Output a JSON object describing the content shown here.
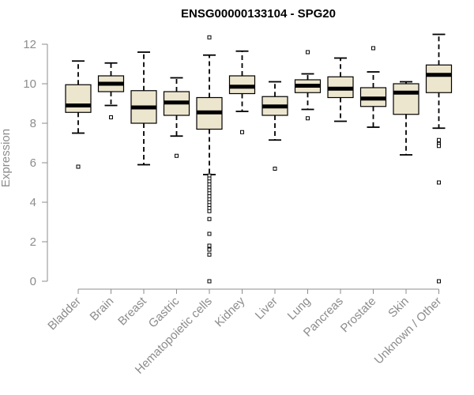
{
  "chart_data": {
    "type": "box",
    "title": "ENSG00000133104 - SPG20",
    "xlabel": "",
    "ylabel": "Expression",
    "ylim": [
      0,
      12.4
    ],
    "yticks": [
      0,
      2,
      4,
      6,
      8,
      10,
      12
    ],
    "grid": false,
    "legend": "none",
    "categories": [
      "Bladder",
      "Brain",
      "Breast",
      "Gastric",
      "Hematopoietic cells",
      "Kidney",
      "Liver",
      "Lung",
      "Pancreas",
      "Prostate",
      "Skin",
      "Unknown / Other"
    ],
    "boxes": [
      {
        "category": "Bladder",
        "whisker_low": 7.5,
        "q1": 8.55,
        "median": 8.9,
        "q3": 9.95,
        "whisker_high": 11.15,
        "outliers": [
          5.8
        ]
      },
      {
        "category": "Brain",
        "whisker_low": 8.9,
        "q1": 9.6,
        "median": 10.0,
        "q3": 10.4,
        "whisker_high": 11.05,
        "outliers": [
          8.3
        ]
      },
      {
        "category": "Breast",
        "whisker_low": 5.9,
        "q1": 8.0,
        "median": 8.8,
        "q3": 9.65,
        "whisker_high": 11.6,
        "outliers": []
      },
      {
        "category": "Gastric",
        "whisker_low": 7.35,
        "q1": 8.4,
        "median": 9.05,
        "q3": 9.6,
        "whisker_high": 10.3,
        "outliers": [
          6.35
        ]
      },
      {
        "category": "Hematopoietic cells",
        "whisker_low": 5.4,
        "q1": 7.7,
        "median": 8.55,
        "q3": 9.3,
        "whisker_high": 11.45,
        "outliers": [
          12.35,
          5.35,
          5.2,
          5.05,
          4.9,
          4.75,
          4.6,
          4.45,
          4.3,
          4.15,
          4.0,
          3.85,
          3.7,
          3.55,
          3.15,
          2.4,
          1.8,
          1.6,
          1.35,
          0.0
        ]
      },
      {
        "category": "Kidney",
        "whisker_low": 8.6,
        "q1": 9.5,
        "median": 9.85,
        "q3": 10.4,
        "whisker_high": 11.65,
        "outliers": [
          7.55
        ]
      },
      {
        "category": "Liver",
        "whisker_low": 7.15,
        "q1": 8.4,
        "median": 8.85,
        "q3": 9.35,
        "whisker_high": 10.1,
        "outliers": [
          5.7
        ]
      },
      {
        "category": "Lung",
        "whisker_low": 8.7,
        "q1": 9.55,
        "median": 9.9,
        "q3": 10.2,
        "whisker_high": 10.5,
        "outliers": [
          11.6,
          8.25
        ]
      },
      {
        "category": "Pancreas",
        "whisker_low": 8.1,
        "q1": 9.3,
        "median": 9.75,
        "q3": 10.35,
        "whisker_high": 11.3,
        "outliers": []
      },
      {
        "category": "Prostate",
        "whisker_low": 7.8,
        "q1": 8.85,
        "median": 9.25,
        "q3": 9.8,
        "whisker_high": 10.6,
        "outliers": [
          11.8
        ]
      },
      {
        "category": "Skin",
        "whisker_low": 6.4,
        "q1": 8.45,
        "median": 9.55,
        "q3": 10.0,
        "whisker_high": 10.1,
        "outliers": []
      },
      {
        "category": "Unknown / Other",
        "whisker_low": 7.75,
        "q1": 9.55,
        "median": 10.45,
        "q3": 10.95,
        "whisker_high": 12.5,
        "outliers": [
          7.15,
          6.95,
          6.85,
          5.0,
          0.0
        ]
      }
    ]
  },
  "colors": {
    "box_fill": "#ede6ce",
    "box_stroke": "#000000",
    "median": "#000000",
    "axis": "#8c8c8c",
    "text": "#8c8c8c",
    "title": "#000000"
  }
}
